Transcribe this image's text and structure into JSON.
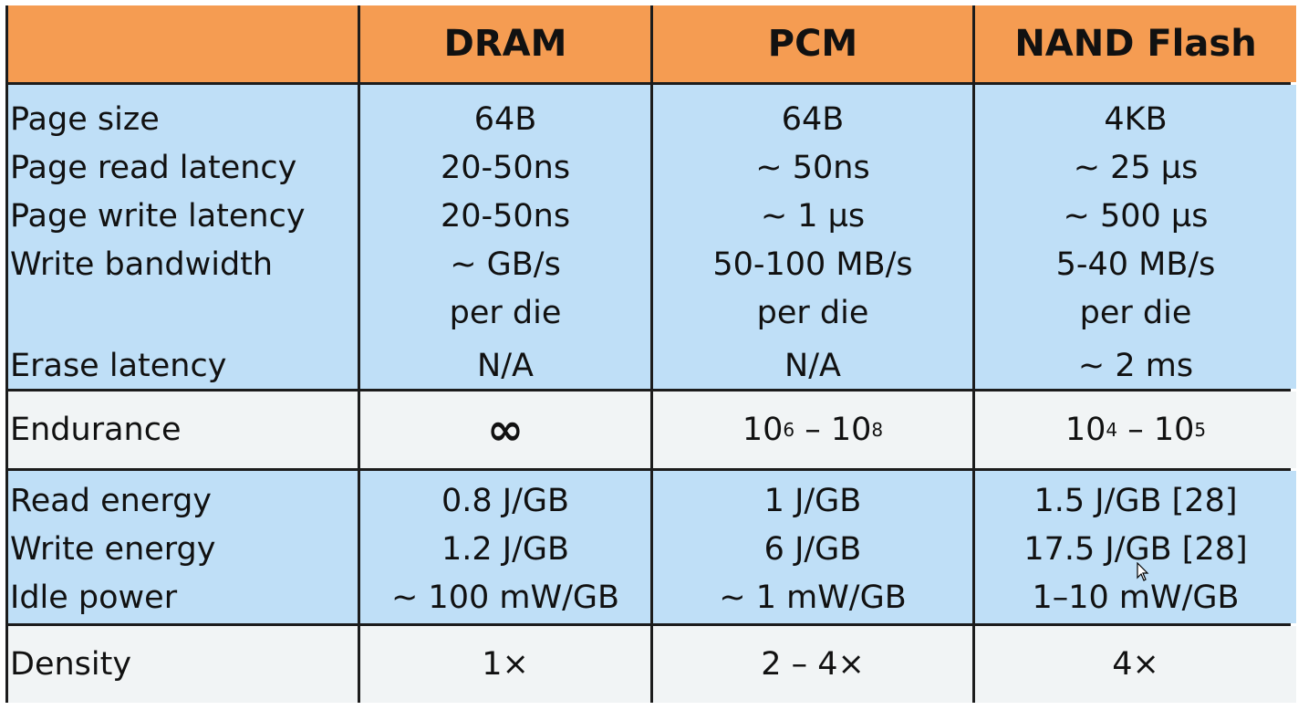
{
  "header": {
    "corner": "",
    "columns": [
      "DRAM",
      "PCM",
      "NAND  Flash"
    ]
  },
  "group_main": {
    "labels": [
      "Page  size",
      "Page  read  latency",
      "Page  write latency",
      "Write bandwidth",
      "",
      "Erase  latency"
    ],
    "dram": [
      "64B",
      "20-50ns",
      "20-50ns",
      "~ GB/s",
      "per die",
      "N/A"
    ],
    "pcm": [
      "64B",
      "~  50ns",
      "~  1 µs",
      "50-100 MB/s",
      "per die",
      "N/A"
    ],
    "nand": [
      "4KB",
      "~  25 µs",
      "~  500 µs",
      "5-40 MB/s",
      "per die",
      "~  2 ms"
    ]
  },
  "endurance": {
    "label": "Endurance",
    "dram": "∞",
    "pcm": {
      "base1": "10",
      "exp1": "6",
      "sep": " – ",
      "base2": "10",
      "exp2": "8"
    },
    "nand": {
      "base1": "10",
      "exp1": "4",
      "sep": " – ",
      "base2": "10",
      "exp2": "5"
    }
  },
  "group_energy": {
    "labels": [
      "Read  energy",
      "Write energy",
      "Idle power"
    ],
    "dram": [
      "0.8 J/GB",
      "1.2 J/GB",
      "~ 100 mW/GB"
    ],
    "pcm": [
      "1 J/GB",
      "6 J/GB",
      "~ 1 mW/GB"
    ],
    "nand": [
      "1.5 J/GB [28]",
      "17.5 J/GB [28]",
      "1–10 mW/GB"
    ]
  },
  "density": {
    "label": "Density",
    "dram": "1×",
    "pcm": "2 – 4×",
    "nand": "4×"
  }
}
